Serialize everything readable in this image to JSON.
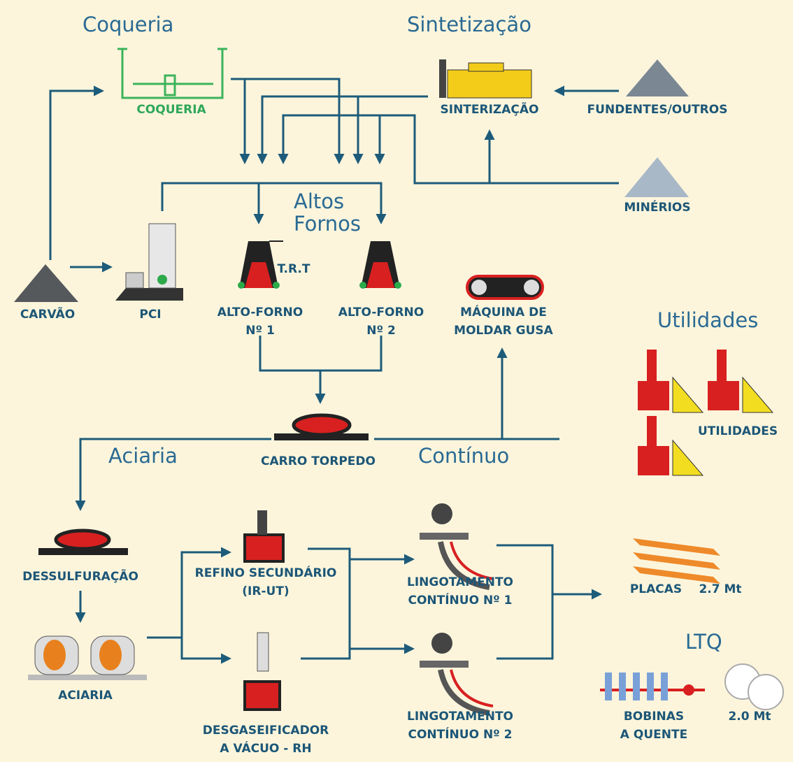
{
  "sections": [
    {
      "lines": [
        "Coqueria"
      ]
    },
    {
      "lines": [
        "Sintetização"
      ]
    },
    {
      "lines": [
        "Altos",
        "Fornos"
      ]
    },
    {
      "lines": [
        "Utilidades"
      ]
    },
    {
      "lines": [
        "Aciaria"
      ]
    },
    {
      "lines": [
        "Contínuo"
      ]
    },
    {
      "lines": [
        "LTQ"
      ]
    }
  ],
  "nodes": [
    {
      "lines": [
        "COQUERIA"
      ]
    },
    {
      "lines": [
        "SINTERIZAÇÃO"
      ]
    },
    {
      "lines": [
        "FUNDENTES/OUTROS"
      ]
    },
    {
      "lines": [
        "MINÉRIOS"
      ]
    },
    {
      "lines": [
        "CARVÃO"
      ]
    },
    {
      "lines": [
        "PCI"
      ]
    },
    {
      "lines": [
        "T.R.T"
      ]
    },
    {
      "lines": [
        "ALTO-FORNO",
        "Nº 1"
      ]
    },
    {
      "lines": [
        "ALTO-FORNO",
        "Nº 2"
      ]
    },
    {
      "lines": [
        "MÁQUINA DE",
        "MOLDAR GUSA"
      ]
    },
    {
      "lines": [
        "UTILIDADES"
      ]
    },
    {
      "lines": [
        "CARRO TORPEDO"
      ]
    },
    {
      "lines": [
        "DESSULFURAÇÃO"
      ]
    },
    {
      "lines": [
        "ACIARIA"
      ]
    },
    {
      "lines": [
        "REFINO SECUNDÁRIO",
        "(IR-UT)"
      ]
    },
    {
      "lines": [
        "DESGASEIFICADOR",
        "A VÁCUO - RH"
      ]
    },
    {
      "lines": [
        "LINGOTAMENTO",
        "CONTÍNUO Nº 1"
      ]
    },
    {
      "lines": [
        "LINGOTAMENTO",
        "CONTÍNUO Nº 2"
      ]
    },
    {
      "lines": [
        "PLACAS"
      ]
    },
    {
      "lines": [
        "2.7 Mt"
      ]
    },
    {
      "lines": [
        "BOBINAS",
        "A QUENTE"
      ]
    },
    {
      "lines": [
        "2.0 Mt"
      ]
    }
  ]
}
